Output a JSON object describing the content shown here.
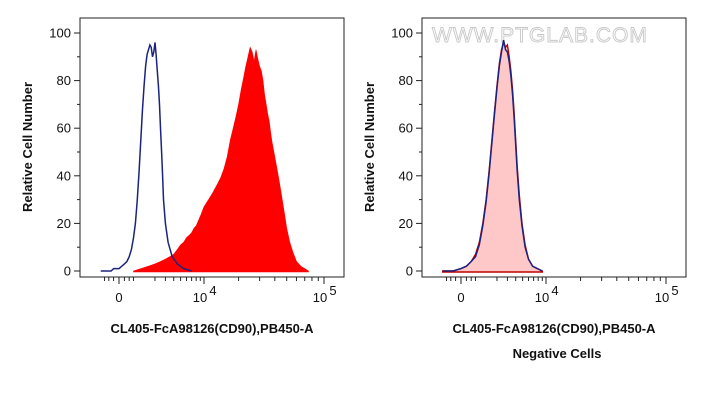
{
  "watermark": "WWW.PTGLAB.COM",
  "chart_data": [
    {
      "type": "area",
      "ylabel": "Relative Cell Number",
      "xlabel": "CL405-FcA98126(CD90),PB450-A",
      "subtitle": "",
      "ylim": [
        0,
        100
      ],
      "yticks": [
        0,
        20,
        40,
        60,
        80,
        100
      ],
      "xticks": [
        {
          "value": 0,
          "label": "0",
          "exp": ""
        },
        {
          "value": 10000,
          "label": "10",
          "exp": "4"
        },
        {
          "value": 100000,
          "label": "10",
          "exp": "5"
        }
      ],
      "series": [
        {
          "role": "sample",
          "style": "fill",
          "color": "#ff0000",
          "x": [
            600,
            1000,
            1500,
            2000,
            2500,
            3000,
            3500,
            4000,
            4500,
            5000,
            5500,
            6000,
            6500,
            7000,
            7500,
            8000,
            8500,
            9000,
            9500,
            10000,
            11000,
            12000,
            13000,
            14000,
            15000,
            16000,
            17000,
            18000,
            19000,
            20000,
            21000,
            22000,
            23000,
            24000,
            25000,
            26000,
            27000,
            28000,
            29000,
            30000,
            31000,
            32000,
            33000,
            34000,
            35000,
            36000,
            37000,
            38000,
            40000,
            42000,
            44000,
            46000,
            48000,
            50000,
            53000,
            56000,
            60000,
            65000,
            70000,
            75000
          ],
          "y": [
            0,
            1,
            2,
            3,
            4,
            5,
            6,
            7,
            9,
            11,
            12,
            14,
            15,
            16,
            18,
            19,
            21,
            23,
            25,
            27,
            30,
            33,
            36,
            39,
            43,
            48,
            55,
            60,
            65,
            70,
            76,
            81,
            86,
            90,
            94,
            92,
            88,
            93,
            89,
            86,
            84,
            80,
            74,
            70,
            66,
            63,
            58,
            54,
            48,
            42,
            36,
            30,
            24,
            18,
            12,
            8,
            4,
            2,
            1,
            0
          ]
        },
        {
          "role": "control",
          "style": "line",
          "color": "#1a237e",
          "x": [
            -800,
            -500,
            -300,
            -200,
            -100,
            0,
            100,
            200,
            300,
            400,
            500,
            600,
            700,
            800,
            900,
            1000,
            1100,
            1200,
            1300,
            1400,
            1500,
            1600,
            1700,
            1800,
            1900,
            2000,
            2100,
            2200,
            2300,
            2400,
            2500,
            2600,
            2700,
            2800,
            3000,
            3300,
            3800,
            4500,
            5500,
            7000
          ],
          "y": [
            0,
            0,
            0,
            1,
            1,
            1,
            2,
            3,
            4,
            6,
            9,
            14,
            20,
            30,
            42,
            55,
            68,
            78,
            86,
            91,
            93,
            95,
            94,
            90,
            92,
            96,
            91,
            84,
            78,
            70,
            60,
            50,
            40,
            30,
            20,
            12,
            6,
            3,
            1,
            0
          ]
        }
      ]
    },
    {
      "type": "area",
      "ylabel": "Relative Cell Number",
      "xlabel": "CL405-FcA98126(CD90),PB450-A",
      "subtitle": "Negative Cells",
      "ylim": [
        0,
        100
      ],
      "yticks": [
        0,
        20,
        40,
        60,
        80,
        100
      ],
      "xticks": [
        {
          "value": 0,
          "label": "0",
          "exp": ""
        },
        {
          "value": 10000,
          "label": "10",
          "exp": "4"
        },
        {
          "value": 100000,
          "label": "10",
          "exp": "5"
        }
      ],
      "series": [
        {
          "role": "sample",
          "style": "fill-outline",
          "color": "#ffc8c8",
          "stroke": "#c00000",
          "x": [
            -800,
            -300,
            0,
            200,
            400,
            600,
            800,
            1000,
            1200,
            1400,
            1600,
            1800,
            2000,
            2200,
            2400,
            2600,
            2800,
            3000,
            3200,
            3400,
            3600,
            3800,
            4000,
            4200,
            4500,
            4900,
            5400,
            6000,
            6800,
            7800,
            9000
          ],
          "y": [
            0,
            0,
            1,
            2,
            4,
            7,
            12,
            20,
            30,
            42,
            55,
            67,
            78,
            87,
            93,
            96,
            94,
            95,
            90,
            84,
            76,
            66,
            55,
            44,
            32,
            20,
            11,
            5,
            2,
            1,
            0
          ]
        },
        {
          "role": "control",
          "style": "line",
          "color": "#1a237e",
          "x": [
            -800,
            -300,
            0,
            200,
            400,
            600,
            800,
            1000,
            1200,
            1400,
            1600,
            1800,
            2000,
            2200,
            2400,
            2600,
            2800,
            3000,
            3200,
            3400,
            3600,
            3800,
            4000,
            4200,
            4500,
            4900,
            5400,
            6000,
            6800,
            7800,
            9000
          ],
          "y": [
            0,
            0,
            1,
            2,
            4,
            6,
            11,
            19,
            29,
            41,
            54,
            66,
            77,
            86,
            92,
            97,
            93,
            92,
            88,
            82,
            74,
            64,
            53,
            42,
            30,
            19,
            10,
            5,
            2,
            1,
            0
          ]
        }
      ]
    }
  ]
}
